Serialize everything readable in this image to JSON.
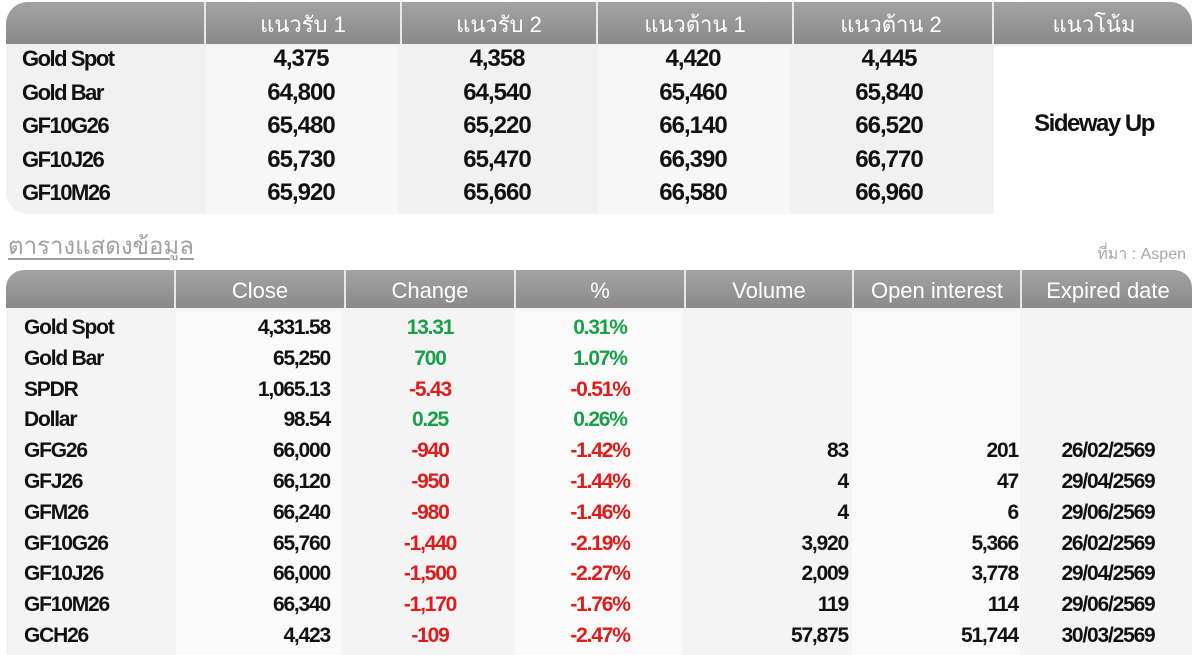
{
  "levels": {
    "headers": [
      "",
      "แนวรับ 1",
      "แนวรับ 2",
      "แนวต้าน 1",
      "แนวต้าน 2",
      "แนวโน้ม"
    ],
    "rows": [
      {
        "name": "Gold Spot",
        "s1": "4,375",
        "s2": "4,358",
        "r1": "4,420",
        "r2": "4,445"
      },
      {
        "name": "Gold Bar",
        "s1": "64,800",
        "s2": "64,540",
        "r1": "65,460",
        "r2": "65,840"
      },
      {
        "name": "GF10G26",
        "s1": "65,480",
        "s2": "65,220",
        "r1": "66,140",
        "r2": "66,520"
      },
      {
        "name": "GF10J26",
        "s1": "65,730",
        "s2": "65,470",
        "r1": "66,390",
        "r2": "66,770"
      },
      {
        "name": "GF10M26",
        "s1": "65,920",
        "s2": "65,660",
        "r1": "66,580",
        "r2": "66,960"
      }
    ],
    "trend": "Sideway Up"
  },
  "section_title": "ตารางแสดงข้อมูล",
  "source": "ที่มา : Aspen",
  "market": {
    "headers": [
      "",
      "Close",
      "Change",
      "%",
      "Volume",
      "Open interest",
      "Expired date"
    ],
    "rows": [
      {
        "name": "Gold Spot",
        "close": "4,331.58",
        "change": "13.31",
        "pct": "0.31%",
        "volume": "",
        "oi": "",
        "expired": "",
        "dir": "pos"
      },
      {
        "name": "Gold Bar",
        "close": "65,250",
        "change": "700",
        "pct": "1.07%",
        "volume": "",
        "oi": "",
        "expired": "",
        "dir": "pos"
      },
      {
        "name": "SPDR",
        "close": "1,065.13",
        "change": "-5.43",
        "pct": "-0.51%",
        "volume": "",
        "oi": "",
        "expired": "",
        "dir": "neg"
      },
      {
        "name": "Dollar",
        "close": "98.54",
        "change": "0.25",
        "pct": "0.26%",
        "volume": "",
        "oi": "",
        "expired": "",
        "dir": "pos"
      },
      {
        "name": "GFG26",
        "close": "66,000",
        "change": "-940",
        "pct": "-1.42%",
        "volume": "83",
        "oi": "201",
        "expired": "26/02/2569",
        "dir": "neg"
      },
      {
        "name": "GFJ26",
        "close": "66,120",
        "change": "-950",
        "pct": "-1.44%",
        "volume": "4",
        "oi": "47",
        "expired": "29/04/2569",
        "dir": "neg"
      },
      {
        "name": "GFM26",
        "close": "66,240",
        "change": "-980",
        "pct": "-1.46%",
        "volume": "4",
        "oi": "6",
        "expired": "29/06/2569",
        "dir": "neg"
      },
      {
        "name": "GF10G26",
        "close": "65,760",
        "change": "-1,440",
        "pct": "-2.19%",
        "volume": "3,920",
        "oi": "5,366",
        "expired": "26/02/2569",
        "dir": "neg"
      },
      {
        "name": "GF10J26",
        "close": "66,000",
        "change": "-1,500",
        "pct": "-2.27%",
        "volume": "2,009",
        "oi": "3,778",
        "expired": "29/04/2569",
        "dir": "neg"
      },
      {
        "name": "GF10M26",
        "close": "66,340",
        "change": "-1,170",
        "pct": "-1.76%",
        "volume": "119",
        "oi": "114",
        "expired": "29/06/2569",
        "dir": "neg"
      },
      {
        "name": "GCH26",
        "close": "4,423",
        "change": "-109",
        "pct": "-2.47%",
        "volume": "57,875",
        "oi": "51,744",
        "expired": "30/03/2569",
        "dir": "neg"
      }
    ]
  },
  "colors": {
    "positive": "#1aa04a",
    "negative": "#e01b1b",
    "header": "#939393"
  }
}
